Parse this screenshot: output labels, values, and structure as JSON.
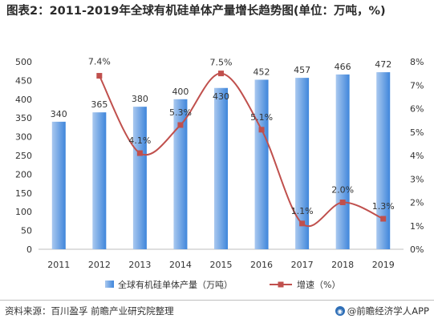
{
  "title": "图表2：2011-2019年全球有机硅单体产量增长趋势图(单位：万吨，%)",
  "chart_data": {
    "type": "bar",
    "categories": [
      "2011",
      "2012",
      "2013",
      "2014",
      "2015",
      "2016",
      "2017",
      "2018",
      "2019"
    ],
    "series": [
      {
        "name": "全球有机硅单体产量（万吨）",
        "type": "bar",
        "axis": "left",
        "values": [
          340,
          365,
          380,
          400,
          430,
          452,
          457,
          466,
          472
        ],
        "labels": [
          "340",
          "365",
          "380",
          "400",
          "430",
          "452",
          "457",
          "466",
          "472"
        ]
      },
      {
        "name": "增速（%）",
        "type": "line",
        "axis": "right",
        "values": [
          null,
          7.4,
          4.1,
          5.3,
          7.5,
          5.1,
          1.1,
          2.0,
          1.3
        ],
        "labels": [
          "",
          "7.4%",
          "4.1%",
          "5.3%",
          "7.5%",
          "5.1%",
          "1.1%",
          "2.0%",
          "1.3%"
        ]
      }
    ],
    "left_axis": {
      "ylim": [
        0,
        500
      ],
      "ticks": [
        "0",
        "50",
        "100",
        "150",
        "200",
        "250",
        "300",
        "350",
        "400",
        "450",
        "500"
      ]
    },
    "right_axis": {
      "ylim": [
        0,
        8
      ],
      "ticks": [
        "0%",
        "1%",
        "2%",
        "3%",
        "4%",
        "5%",
        "6%",
        "7%",
        "8%"
      ]
    },
    "legend_position": "bottom",
    "colors": {
      "bar_light": "#a9c8ef",
      "bar_dark": "#3f86db",
      "line": "#c0504d"
    }
  },
  "footer": {
    "source": "资料来源：百川盈孚 前瞻产业研究院整理",
    "brand": "@前瞻经济学人APP"
  }
}
